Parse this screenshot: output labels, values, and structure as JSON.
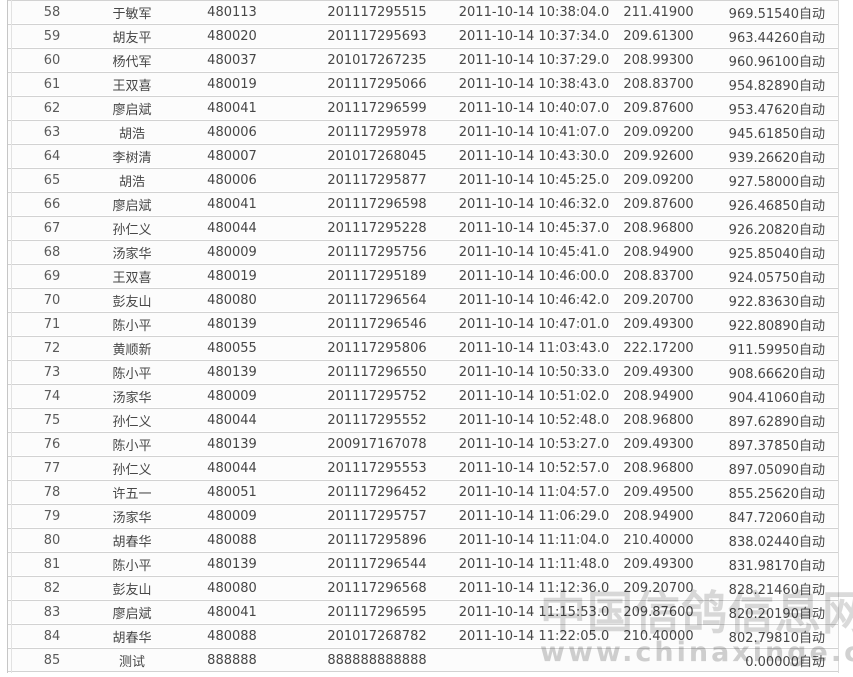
{
  "table": {
    "rows": [
      [
        "58",
        "于敏军",
        "480113",
        "201117295515",
        "2011-10-14 10:38:04.0",
        "211.41900",
        "969.51540",
        "自动"
      ],
      [
        "59",
        "胡友平",
        "480020",
        "201117295693",
        "2011-10-14 10:37:34.0",
        "209.61300",
        "963.44260",
        "自动"
      ],
      [
        "60",
        "杨代军",
        "480037",
        "201017267235",
        "2011-10-14 10:37:29.0",
        "208.99300",
        "960.96100",
        "自动"
      ],
      [
        "61",
        "王双喜",
        "480019",
        "201117295066",
        "2011-10-14 10:38:43.0",
        "208.83700",
        "954.82890",
        "自动"
      ],
      [
        "62",
        "廖启斌",
        "480041",
        "201117296599",
        "2011-10-14 10:40:07.0",
        "209.87600",
        "953.47620",
        "自动"
      ],
      [
        "63",
        "胡浩",
        "480006",
        "201117295978",
        "2011-10-14 10:41:07.0",
        "209.09200",
        "945.61850",
        "自动"
      ],
      [
        "64",
        "李树清",
        "480007",
        "201017268045",
        "2011-10-14 10:43:30.0",
        "209.92600",
        "939.26620",
        "自动"
      ],
      [
        "65",
        "胡浩",
        "480006",
        "201117295877",
        "2011-10-14 10:45:25.0",
        "209.09200",
        "927.58000",
        "自动"
      ],
      [
        "66",
        "廖启斌",
        "480041",
        "201117296598",
        "2011-10-14 10:46:32.0",
        "209.87600",
        "926.46850",
        "自动"
      ],
      [
        "67",
        "孙仁义",
        "480044",
        "201117295228",
        "2011-10-14 10:45:37.0",
        "208.96800",
        "926.20820",
        "自动"
      ],
      [
        "68",
        "汤家华",
        "480009",
        "201117295756",
        "2011-10-14 10:45:41.0",
        "208.94900",
        "925.85040",
        "自动"
      ],
      [
        "69",
        "王双喜",
        "480019",
        "201117295189",
        "2011-10-14 10:46:00.0",
        "208.83700",
        "924.05750",
        "自动"
      ],
      [
        "70",
        "彭友山",
        "480080",
        "201117296564",
        "2011-10-14 10:46:42.0",
        "209.20700",
        "922.83630",
        "自动"
      ],
      [
        "71",
        "陈小平",
        "480139",
        "201117296546",
        "2011-10-14 10:47:01.0",
        "209.49300",
        "922.80890",
        "自动"
      ],
      [
        "72",
        "黄顺新",
        "480055",
        "201117295806",
        "2011-10-14 11:03:43.0",
        "222.17200",
        "911.59950",
        "自动"
      ],
      [
        "73",
        "陈小平",
        "480139",
        "201117296550",
        "2011-10-14 10:50:33.0",
        "209.49300",
        "908.66620",
        "自动"
      ],
      [
        "74",
        "汤家华",
        "480009",
        "201117295752",
        "2011-10-14 10:51:02.0",
        "208.94900",
        "904.41060",
        "自动"
      ],
      [
        "75",
        "孙仁义",
        "480044",
        "201117295552",
        "2011-10-14 10:52:48.0",
        "208.96800",
        "897.62890",
        "自动"
      ],
      [
        "76",
        "陈小平",
        "480139",
        "200917167078",
        "2011-10-14 10:53:27.0",
        "209.49300",
        "897.37850",
        "自动"
      ],
      [
        "77",
        "孙仁义",
        "480044",
        "201117295553",
        "2011-10-14 10:52:57.0",
        "208.96800",
        "897.05090",
        "自动"
      ],
      [
        "78",
        "许五一",
        "480051",
        "201117296452",
        "2011-10-14 11:04:57.0",
        "209.49500",
        "855.25620",
        "自动"
      ],
      [
        "79",
        "汤家华",
        "480009",
        "201117295757",
        "2011-10-14 11:06:29.0",
        "208.94900",
        "847.72060",
        "自动"
      ],
      [
        "80",
        "胡春华",
        "480088",
        "201117295896",
        "2011-10-14 11:11:04.0",
        "210.40000",
        "838.02440",
        "自动"
      ],
      [
        "81",
        "陈小平",
        "480139",
        "201117296544",
        "2011-10-14 11:11:48.0",
        "209.49300",
        "831.98170",
        "自动"
      ],
      [
        "82",
        "彭友山",
        "480080",
        "201117296568",
        "2011-10-14 11:12:36.0",
        "209.20700",
        "828.21460",
        "自动"
      ],
      [
        "83",
        "廖启斌",
        "480041",
        "201117296595",
        "2011-10-14 11:15:53.0",
        "209.87600",
        "820.20190",
        "自动"
      ],
      [
        "84",
        "胡春华",
        "480088",
        "201017268782",
        "2011-10-14 11:22:05.0",
        "210.40000",
        "802.79810",
        "自动"
      ],
      [
        "85",
        "测试",
        "888888",
        "888888888888",
        "",
        "",
        "0.00000",
        "自动"
      ]
    ]
  },
  "watermark": {
    "line1": "中国信鸽信息网",
    "line2": "www.chinaxinge.com"
  },
  "colors": {
    "row_border": "#d2d2d2",
    "row_background": "#fcfcfc",
    "text": "#474747",
    "watermark": "#cccccc"
  }
}
